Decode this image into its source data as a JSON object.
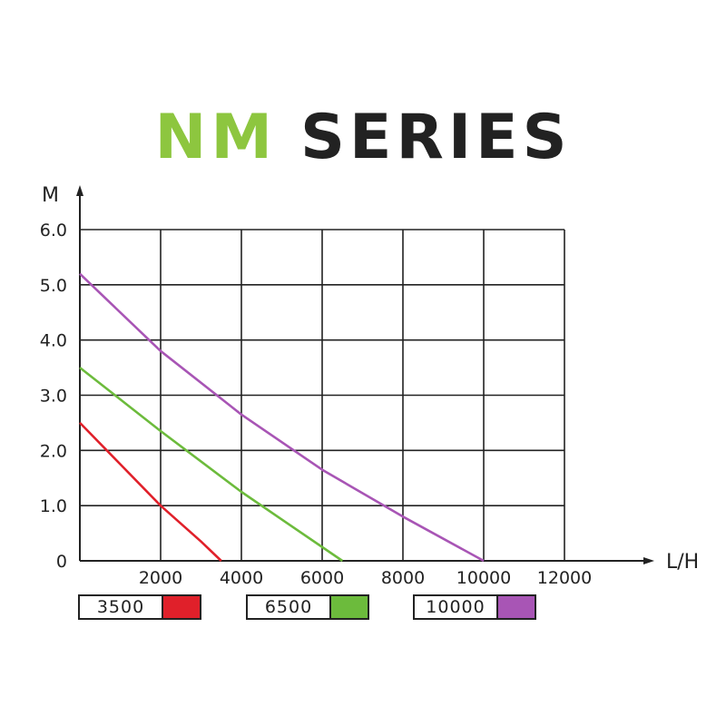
{
  "title": {
    "part1": "NM",
    "part2": "SERIES",
    "part1_color": "#8dc63f",
    "part2_color": "#222222"
  },
  "chart_data": {
    "type": "line",
    "xlabel": "L/H",
    "ylabel": "M",
    "xlim": [
      0,
      12000
    ],
    "ylim": [
      0,
      6
    ],
    "grid": true,
    "x_ticks": [
      "2000",
      "4000",
      "6000",
      "8000",
      "10000",
      "12000"
    ],
    "y_ticks": [
      "0",
      "1.0",
      "2.0",
      "3.0",
      "4.0",
      "5.0",
      "6.0"
    ],
    "legend_position": "bottom",
    "series": [
      {
        "name": "3500",
        "color": "#e0202a",
        "points": [
          [
            0,
            2.5
          ],
          [
            1000,
            1.75
          ],
          [
            2000,
            1.0
          ],
          [
            3000,
            0.35
          ],
          [
            3500,
            0
          ]
        ]
      },
      {
        "name": "6500",
        "color": "#6cbb3c",
        "points": [
          [
            0,
            3.5
          ],
          [
            2000,
            2.35
          ],
          [
            4000,
            1.25
          ],
          [
            5000,
            0.75
          ],
          [
            6500,
            0
          ]
        ]
      },
      {
        "name": "10000",
        "color": "#a855b5",
        "points": [
          [
            0,
            5.2
          ],
          [
            2000,
            3.8
          ],
          [
            4000,
            2.65
          ],
          [
            6000,
            1.65
          ],
          [
            8000,
            0.8
          ],
          [
            10000,
            0
          ]
        ]
      }
    ]
  }
}
